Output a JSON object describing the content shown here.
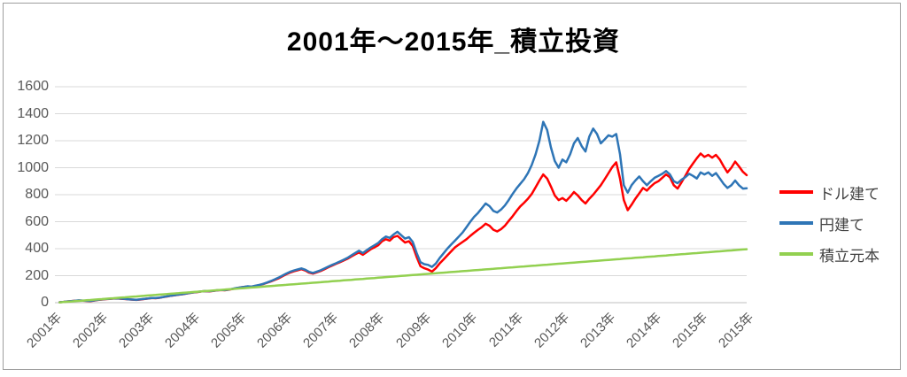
{
  "chart_data": {
    "type": "line",
    "title": "2001年～2015年_積立投資",
    "xlabel": "",
    "ylabel": "",
    "ylim": [
      0,
      1600
    ],
    "y_ticks": [
      0,
      200,
      400,
      600,
      800,
      1000,
      1200,
      1400,
      1600
    ],
    "x_tick_labels": [
      "2001年",
      "2002年",
      "2003年",
      "2004年",
      "2005年",
      "2006年",
      "2007年",
      "2008年",
      "2009年",
      "2010年",
      "2011年",
      "2012年",
      "2013年",
      "2014年",
      "2015年",
      "2015年"
    ],
    "x_unit": "month",
    "x_range_years": [
      2001,
      2016
    ],
    "grid": true,
    "legend_position": "right",
    "colors": {
      "dollar": "#ff0000",
      "yen": "#2e75b6",
      "principal": "#92d050",
      "gridline": "#d9d9d9",
      "axis_line": "#bfbfbf",
      "axis_text": "#595959",
      "legend_text": "#404040",
      "border": "#9e9e9e"
    },
    "series": [
      {
        "name": "ドル建て",
        "color": "#ff0000",
        "values": [
          3,
          6,
          9,
          11,
          14,
          16,
          15,
          13,
          12,
          16,
          20,
          23,
          26,
          28,
          30,
          31,
          29,
          27,
          24,
          22,
          20,
          23,
          27,
          30,
          34,
          33,
          36,
          41,
          46,
          51,
          55,
          59,
          62,
          67,
          72,
          76,
          79,
          83,
          85,
          84,
          87,
          91,
          93,
          92,
          96,
          101,
          107,
          112,
          116,
          120,
          118,
          124,
          130,
          138,
          147,
          157,
          168,
          180,
          195,
          210,
          222,
          232,
          240,
          248,
          238,
          222,
          215,
          225,
          235,
          248,
          262,
          275,
          288,
          300,
          312,
          325,
          342,
          358,
          372,
          355,
          375,
          395,
          410,
          425,
          455,
          470,
          460,
          485,
          495,
          470,
          445,
          455,
          420,
          340,
          270,
          255,
          245,
          230,
          255,
          290,
          320,
          350,
          380,
          410,
          430,
          450,
          470,
          495,
          518,
          540,
          560,
          585,
          570,
          540,
          528,
          545,
          570,
          605,
          640,
          678,
          713,
          740,
          770,
          805,
          855,
          905,
          950,
          920,
          860,
          795,
          760,
          775,
          755,
          785,
          820,
          795,
          760,
          735,
          770,
          800,
          835,
          870,
          915,
          960,
          1005,
          1040,
          920,
          760,
          685,
          725,
          770,
          810,
          850,
          830,
          860,
          885,
          900,
          925,
          950,
          930,
          870,
          845,
          890,
          940,
          990,
          1030,
          1070,
          1105,
          1080,
          1095,
          1075,
          1095,
          1060,
          1010,
          965,
          1000,
          1045,
          1010,
          970,
          945
        ]
      },
      {
        "name": "円建て",
        "color": "#2e75b6",
        "values": [
          3,
          6,
          9,
          12,
          14,
          17,
          16,
          14,
          13,
          17,
          21,
          24,
          27,
          29,
          31,
          32,
          30,
          28,
          25,
          23,
          21,
          24,
          28,
          31,
          35,
          34,
          37,
          42,
          47,
          52,
          56,
          60,
          63,
          68,
          73,
          77,
          80,
          84,
          86,
          85,
          88,
          92,
          94,
          93,
          97,
          102,
          108,
          113,
          117,
          121,
          119,
          125,
          131,
          139,
          149,
          160,
          172,
          185,
          200,
          215,
          228,
          238,
          246,
          254,
          244,
          228,
          220,
          230,
          240,
          253,
          267,
          280,
          292,
          305,
          318,
          332,
          350,
          368,
          385,
          368,
          388,
          408,
          425,
          442,
          470,
          490,
          480,
          505,
          525,
          500,
          475,
          485,
          450,
          370,
          300,
          285,
          280,
          265,
          290,
          330,
          365,
          400,
          430,
          460,
          490,
          520,
          560,
          600,
          636,
          665,
          700,
          735,
          715,
          680,
          668,
          690,
          720,
          760,
          805,
          845,
          880,
          915,
          960,
          1020,
          1100,
          1200,
          1340,
          1280,
          1150,
          1050,
          1000,
          1060,
          1040,
          1100,
          1180,
          1220,
          1160,
          1120,
          1230,
          1290,
          1250,
          1180,
          1210,
          1240,
          1230,
          1250,
          1100,
          870,
          815,
          870,
          905,
          935,
          900,
          870,
          900,
          925,
          940,
          955,
          975,
          950,
          900,
          885,
          910,
          930,
          955,
          940,
          920,
          965,
          950,
          965,
          940,
          960,
          920,
          880,
          850,
          870,
          905,
          870,
          845,
          848
        ]
      },
      {
        "name": "積立元本",
        "color": "#92d050",
        "values": [
          2.2,
          4.4,
          6.6,
          8.8,
          11,
          13.2,
          15.4,
          17.6,
          19.8,
          22,
          24.2,
          26.4,
          28.6,
          30.8,
          33,
          35.2,
          37.4,
          39.6,
          41.8,
          44,
          46.2,
          48.4,
          50.6,
          52.8,
          55,
          57.2,
          59.4,
          61.6,
          63.8,
          66,
          68.2,
          70.4,
          72.6,
          74.8,
          77,
          79.2,
          81.4,
          83.6,
          85.8,
          88,
          90.2,
          92.4,
          94.6,
          96.8,
          99,
          101.2,
          103.4,
          105.6,
          107.8,
          110,
          112.2,
          114.4,
          116.6,
          118.8,
          121,
          123.2,
          125.4,
          127.6,
          129.8,
          132,
          134.2,
          136.4,
          138.6,
          140.8,
          143,
          145.2,
          147.4,
          149.6,
          151.8,
          154,
          156.2,
          158.4,
          160.6,
          162.8,
          165,
          167.2,
          169.4,
          171.6,
          173.8,
          176,
          178.2,
          180.4,
          182.6,
          184.8,
          187,
          189.2,
          191.4,
          193.6,
          195.8,
          198,
          200.2,
          202.4,
          204.6,
          206.8,
          209,
          211.2,
          213.4,
          215.6,
          217.8,
          220,
          222.2,
          224.4,
          226.6,
          228.8,
          231,
          233.2,
          235.4,
          237.6,
          239.8,
          242,
          244.2,
          246.4,
          248.6,
          250.8,
          253,
          255.2,
          257.4,
          259.6,
          261.8,
          264,
          266.2,
          268.4,
          270.6,
          272.8,
          275,
          277.2,
          279.4,
          281.6,
          283.8,
          286,
          288.2,
          290.4,
          292.6,
          294.8,
          297,
          299.2,
          301.4,
          303.6,
          305.8,
          308,
          310.2,
          312.4,
          314.6,
          316.8,
          319,
          321.2,
          323.4,
          325.6,
          327.8,
          330,
          332.2,
          334.4,
          336.6,
          338.8,
          341,
          343.2,
          345.4,
          347.6,
          349.8,
          352,
          354.2,
          356.4,
          358.6,
          360.8,
          363,
          365.2,
          367.4,
          369.6,
          371.8,
          374,
          376.2,
          378.4,
          380.6,
          382.8,
          385,
          387.2,
          389.4,
          391.6,
          393.8,
          396
        ]
      }
    ]
  }
}
